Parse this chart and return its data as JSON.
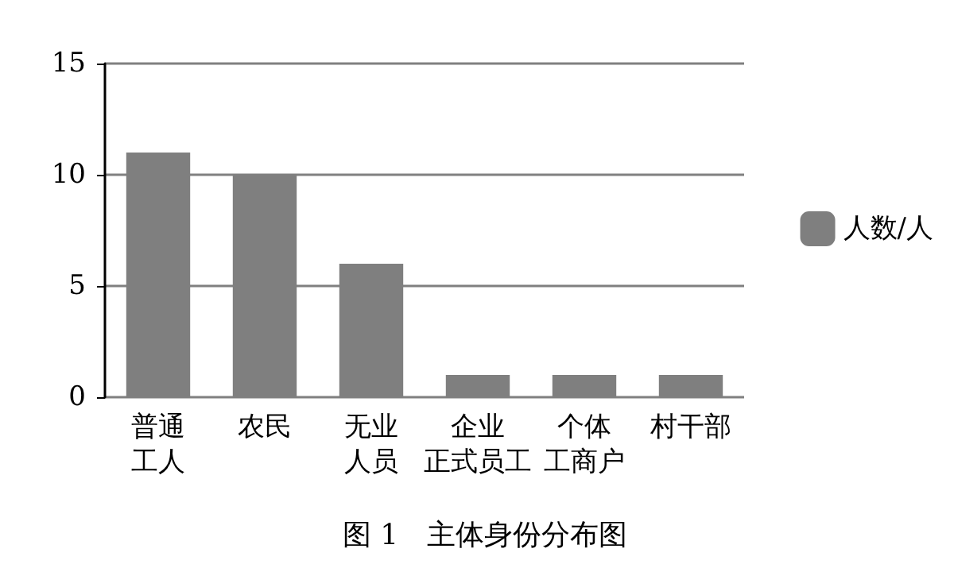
{
  "chart_data": {
    "type": "bar",
    "title": "图 1　主体身份分布图",
    "categories": [
      "普通工人",
      "农民",
      "无业人员",
      "企业正式员工",
      "个体工商户",
      "村干部"
    ],
    "series": [
      {
        "name": "人数/人",
        "color": "#7f7f7f",
        "values": [
          11,
          10,
          6,
          1,
          1,
          1
        ]
      }
    ],
    "ylim": [
      0,
      15
    ],
    "yticks": [
      0,
      5,
      10,
      15
    ],
    "grid": "y",
    "legend": "right"
  }
}
